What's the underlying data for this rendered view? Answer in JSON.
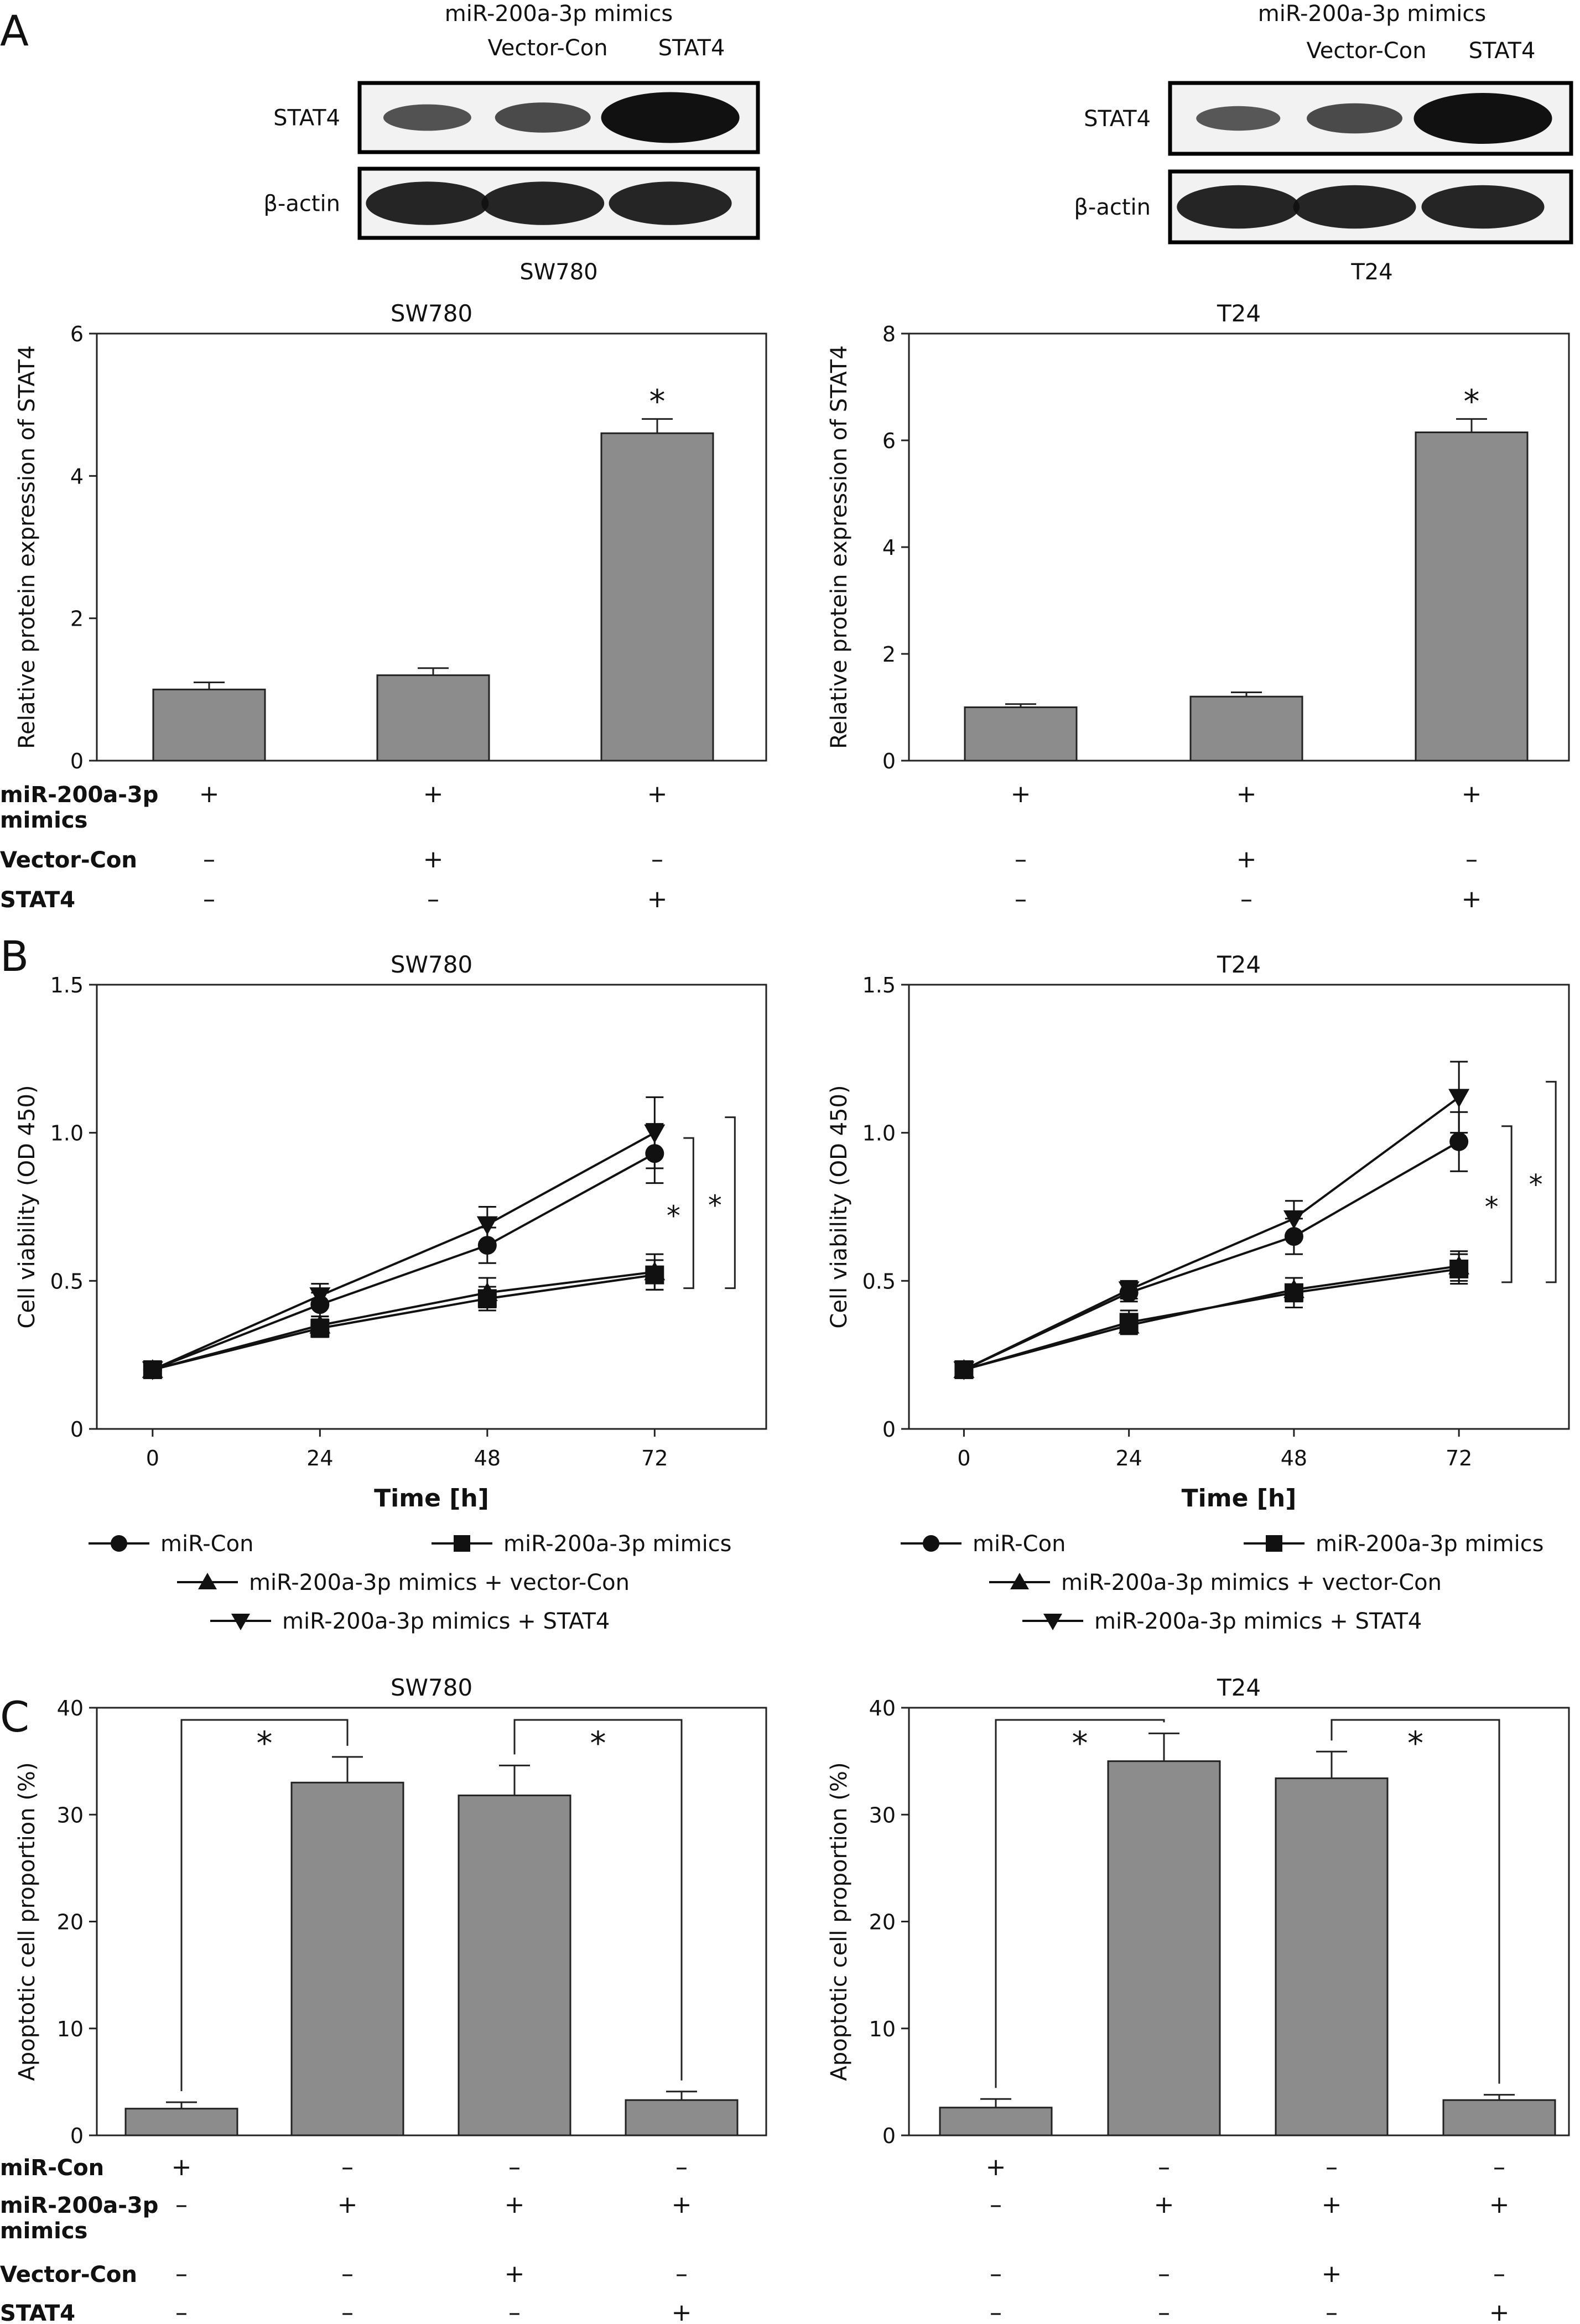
{
  "panel_labels": [
    "A",
    "B",
    "C"
  ],
  "western_blot": [
    {
      "cell_line": "SW780",
      "header": "miR-200a-3p mimics",
      "lanes": [
        "Vector-Con",
        "STAT4"
      ],
      "rows": [
        "STAT4",
        "β-actin"
      ],
      "band_intensity": {
        "STAT4": [
          0.35,
          0.45,
          1.0
        ],
        "β-actin": [
          0.8,
          0.8,
          0.8
        ]
      }
    },
    {
      "cell_line": "T24",
      "header": "miR-200a-3p mimics",
      "lanes": [
        "Vector-Con",
        "STAT4"
      ],
      "rows": [
        "STAT4",
        "β-actin"
      ],
      "band_intensity": {
        "STAT4": [
          0.3,
          0.45,
          1.0
        ],
        "β-actin": [
          0.8,
          0.8,
          0.8
        ]
      }
    }
  ],
  "legend_b": [
    "miR-Con",
    "miR-200a-3p mimics",
    "miR-200a-3p mimics + vector-Con",
    "miR-200a-3p mimics + STAT4"
  ],
  "chart_data": [
    {
      "id": "A-SW780",
      "type": "bar",
      "title": "SW780",
      "ylabel": "Relative protein expression of STAT4",
      "ylim": [
        0,
        6
      ],
      "yticks": [
        0,
        2,
        4,
        6
      ],
      "values": [
        1.0,
        1.2,
        4.6
      ],
      "errors": [
        0.1,
        0.1,
        0.2
      ],
      "significance": [
        "",
        "",
        "*"
      ],
      "condition_rows": [
        {
          "label": "miR-200a-3p mimics",
          "signs": [
            "+",
            "+",
            "+"
          ]
        },
        {
          "label": "Vector-Con",
          "signs": [
            "–",
            "+",
            "–"
          ]
        },
        {
          "label": "STAT4",
          "signs": [
            "–",
            "–",
            "+"
          ]
        }
      ]
    },
    {
      "id": "A-T24",
      "type": "bar",
      "title": "T24",
      "ylabel": "Relative protein expression of STAT4",
      "ylim": [
        0,
        8
      ],
      "yticks": [
        0,
        2,
        4,
        6,
        8
      ],
      "values": [
        1.0,
        1.2,
        6.15
      ],
      "errors": [
        0.06,
        0.08,
        0.25
      ],
      "significance": [
        "",
        "",
        "*"
      ],
      "condition_rows": [
        {
          "label": "miR-200a-3p mimics",
          "signs": [
            "+",
            "+",
            "+"
          ]
        },
        {
          "label": "Vector-Con",
          "signs": [
            "–",
            "+",
            "–"
          ]
        },
        {
          "label": "STAT4",
          "signs": [
            "–",
            "–",
            "+"
          ]
        }
      ]
    },
    {
      "id": "B-SW780",
      "type": "line",
      "title": "SW780",
      "xlabel": "Time [h]",
      "ylabel": "Cell viability (OD 450)",
      "x": [
        0,
        24,
        48,
        72
      ],
      "xlim": [
        -8,
        88
      ],
      "ylim": [
        0,
        1.5
      ],
      "yticks": [
        "0",
        "0.5",
        "1.0",
        "1.5"
      ],
      "series": [
        {
          "name": "miR-Con",
          "marker": "circle",
          "values": [
            0.2,
            0.42,
            0.62,
            0.93
          ],
          "errors": [
            0,
            0.04,
            0.06,
            0.1
          ]
        },
        {
          "name": "miR-200a-3p mimics",
          "marker": "square",
          "values": [
            0.2,
            0.34,
            0.44,
            0.52
          ],
          "errors": [
            0,
            0.03,
            0.04,
            0.05
          ]
        },
        {
          "name": "miR-200a-3p mimics + vector-Con",
          "marker": "triangle-up",
          "values": [
            0.2,
            0.35,
            0.46,
            0.53
          ],
          "errors": [
            0,
            0.03,
            0.05,
            0.06
          ]
        },
        {
          "name": "miR-200a-3p mimics + STAT4",
          "marker": "triangle-down",
          "values": [
            0.2,
            0.45,
            0.69,
            1.0
          ],
          "errors": [
            0,
            0.04,
            0.06,
            0.12
          ]
        }
      ],
      "significance": [
        "*",
        "*"
      ]
    },
    {
      "id": "B-T24",
      "type": "line",
      "title": "T24",
      "xlabel": "Time [h]",
      "ylabel": "Cell viability (OD 450)",
      "x": [
        0,
        24,
        48,
        72
      ],
      "xlim": [
        -8,
        88
      ],
      "ylim": [
        0,
        1.5
      ],
      "yticks": [
        "0",
        "0.5",
        "1.0",
        "1.5"
      ],
      "series": [
        {
          "name": "miR-Con",
          "marker": "circle",
          "values": [
            0.2,
            0.46,
            0.65,
            0.97
          ],
          "errors": [
            0,
            0.03,
            0.06,
            0.1
          ]
        },
        {
          "name": "miR-200a-3p mimics",
          "marker": "square",
          "values": [
            0.2,
            0.36,
            0.46,
            0.54
          ],
          "errors": [
            0,
            0.04,
            0.05,
            0.05
          ]
        },
        {
          "name": "miR-200a-3p mimics + vector-Con",
          "marker": "triangle-up",
          "values": [
            0.2,
            0.35,
            0.47,
            0.55
          ],
          "errors": [
            0,
            0.03,
            0.04,
            0.05
          ]
        },
        {
          "name": "miR-200a-3p mimics + STAT4",
          "marker": "triangle-down",
          "values": [
            0.2,
            0.47,
            0.71,
            1.12
          ],
          "errors": [
            0,
            0.03,
            0.06,
            0.12
          ]
        }
      ],
      "significance": [
        "*",
        "*"
      ]
    },
    {
      "id": "C-SW780",
      "type": "bar",
      "title": "SW780",
      "ylabel": "Apoptotic cell proportion (%)",
      "ylim": [
        0,
        40
      ],
      "yticks": [
        0,
        10,
        20,
        30,
        40
      ],
      "values": [
        2.5,
        33.0,
        31.8,
        3.3
      ],
      "errors": [
        0.6,
        2.4,
        2.8,
        0.8
      ],
      "comparisons": [
        {
          "from": 0,
          "to": 1,
          "label": "*"
        },
        {
          "from": 2,
          "to": 3,
          "label": "*"
        }
      ],
      "condition_rows": [
        {
          "label": "miR-Con",
          "signs": [
            "+",
            "–",
            "–",
            "–"
          ]
        },
        {
          "label": "miR-200a-3p mimics",
          "signs": [
            "–",
            "+",
            "+",
            "+"
          ]
        },
        {
          "label": "Vector-Con",
          "signs": [
            "–",
            "–",
            "+",
            "–"
          ]
        },
        {
          "label": "STAT4",
          "signs": [
            "–",
            "–",
            "–",
            "+"
          ]
        }
      ]
    },
    {
      "id": "C-T24",
      "type": "bar",
      "title": "T24",
      "ylabel": "Apoptotic cell proportion (%)",
      "ylim": [
        0,
        40
      ],
      "yticks": [
        0,
        10,
        20,
        30,
        40
      ],
      "values": [
        2.6,
        35.0,
        33.4,
        3.3
      ],
      "errors": [
        0.8,
        2.6,
        2.5,
        0.5
      ],
      "comparisons": [
        {
          "from": 0,
          "to": 1,
          "label": "*"
        },
        {
          "from": 2,
          "to": 3,
          "label": "*"
        }
      ],
      "condition_rows": [
        {
          "label": "miR-Con",
          "signs": [
            "+",
            "–",
            "–",
            "–"
          ]
        },
        {
          "label": "miR-200a-3p mimics",
          "signs": [
            "–",
            "+",
            "+",
            "+"
          ]
        },
        {
          "label": "Vector-Con",
          "signs": [
            "–",
            "–",
            "+",
            "–"
          ]
        },
        {
          "label": "STAT4",
          "signs": [
            "–",
            "–",
            "–",
            "+"
          ]
        }
      ]
    }
  ]
}
